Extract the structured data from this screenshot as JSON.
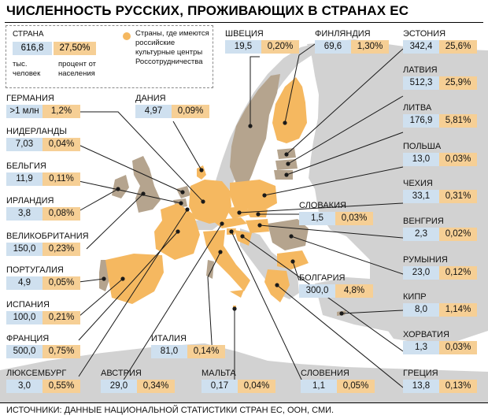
{
  "title": "ЧИСЛЕННОСТЬ РУССКИХ, ПРОЖИВАЮЩИХ В СТРАНАХ ЕС",
  "source": "ИСТОЧНИКИ: ДАННЫЕ НАЦИОНАЛЬНОЙ СТАТИСТИКИ СТРАН ЕС, ООН, СМИ.",
  "colors": {
    "sea": "#ffffff",
    "land_other": "#d2d2d2",
    "land_eu": "#b5a48e",
    "land_centers": "#f5b860",
    "number_box": "#cfe0ef",
    "percent_box": "#f6cf95",
    "leader": "#1a1a1a"
  },
  "legend": {
    "country_label": "СТРАНА",
    "sample_number": "616,8",
    "sample_percent": "27,50%",
    "unit_number": "тыс. человек",
    "unit_percent": "процент от населения",
    "marker_text": "Страны, где имеются российские культурные центры Россотрудничества"
  },
  "countries": [
    {
      "name": "ШВЕЦИЯ",
      "number": "19,5",
      "percent": "0,20%"
    },
    {
      "name": "ФИНЛЯНДИЯ",
      "number": "69,6",
      "percent": "1,30%"
    },
    {
      "name": "ЭСТОНИЯ",
      "number": "342,4",
      "percent": "25,6%"
    },
    {
      "name": "ЛАТВИЯ",
      "number": "512,3",
      "percent": "25,9%"
    },
    {
      "name": "ЛИТВА",
      "number": "176,9",
      "percent": "5,81%"
    },
    {
      "name": "ПОЛЬША",
      "number": "13,0",
      "percent": "0,03%"
    },
    {
      "name": "ЧЕХИЯ",
      "number": "33,1",
      "percent": "0,31%"
    },
    {
      "name": "ВЕНГРИЯ",
      "number": "2,3",
      "percent": "0,02%"
    },
    {
      "name": "РУМЫНИЯ",
      "number": "23,0",
      "percent": "0,12%"
    },
    {
      "name": "КИПР",
      "number": "8,0",
      "percent": "1,14%"
    },
    {
      "name": "ХОРВАТИЯ",
      "number": "1,3",
      "percent": "0,03%"
    },
    {
      "name": "ГРЕЦИЯ",
      "number": "13,8",
      "percent": "0,13%"
    },
    {
      "name": "ГЕРМАНИЯ",
      "number": ">1 млн",
      "percent": "1,2%"
    },
    {
      "name": "ДАНИЯ",
      "number": "4,97",
      "percent": "0,09%"
    },
    {
      "name": "НИДЕРЛАНДЫ",
      "number": "7,03",
      "percent": "0,04%"
    },
    {
      "name": "БЕЛЬГИЯ",
      "number": "11,9",
      "percent": "0,11%"
    },
    {
      "name": "ИРЛАНДИЯ",
      "number": "3,8",
      "percent": "0,08%"
    },
    {
      "name": "ВЕЛИКОБРИТАНИЯ",
      "number": "150,0",
      "percent": "0,23%"
    },
    {
      "name": "ПОРТУГАЛИЯ",
      "number": "4,9",
      "percent": "0,05%"
    },
    {
      "name": "ИСПАНИЯ",
      "number": "100,0",
      "percent": "0,21%"
    },
    {
      "name": "ФРАНЦИЯ",
      "number": "500,0",
      "percent": "0,75%"
    },
    {
      "name": "ЛЮКСЕМБУРГ",
      "number": "3,0",
      "percent": "0,55%"
    },
    {
      "name": "АВСТРИЯ",
      "number": "29,0",
      "percent": "0,34%"
    },
    {
      "name": "ИТАЛИЯ",
      "number": "81,0",
      "percent": "0,14%"
    },
    {
      "name": "МАЛЬТА",
      "number": "0,17",
      "percent": "0,04%"
    },
    {
      "name": "СЛОВЕНИЯ",
      "number": "1,1",
      "percent": "0,05%"
    },
    {
      "name": "СЛОВАКИЯ",
      "number": "1,5",
      "percent": "0,03%"
    },
    {
      "name": "БОЛГАРИЯ",
      "number": "300,0",
      "percent": "4,8%"
    }
  ]
}
